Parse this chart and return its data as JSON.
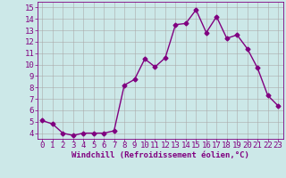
{
  "x": [
    0,
    1,
    2,
    3,
    4,
    5,
    6,
    7,
    8,
    9,
    10,
    11,
    12,
    13,
    14,
    15,
    16,
    17,
    18,
    19,
    20,
    21,
    22,
    23
  ],
  "y": [
    5.1,
    4.8,
    4.0,
    3.8,
    4.0,
    4.0,
    4.0,
    4.2,
    8.2,
    8.7,
    10.5,
    9.8,
    10.6,
    13.5,
    13.6,
    14.8,
    12.8,
    14.2,
    12.3,
    12.6,
    11.4,
    9.7,
    7.3,
    6.4
  ],
  "line_color": "#800080",
  "marker": "D",
  "marker_size": 2.5,
  "bg_color": "#cce8e8",
  "grid_color": "#aaaaaa",
  "xlabel": "Windchill (Refroidissement éolien,°C)",
  "xlabel_color": "#800080",
  "tick_color": "#800080",
  "xlim": [
    -0.5,
    23.5
  ],
  "ylim": [
    3.5,
    15.5
  ],
  "yticks": [
    4,
    5,
    6,
    7,
    8,
    9,
    10,
    11,
    12,
    13,
    14,
    15
  ],
  "xticks": [
    0,
    1,
    2,
    3,
    4,
    5,
    6,
    7,
    8,
    9,
    10,
    11,
    12,
    13,
    14,
    15,
    16,
    17,
    18,
    19,
    20,
    21,
    22,
    23
  ],
  "line_width": 1.0,
  "spine_color": "#800080",
  "axis_bg_color": "#cce8e8",
  "tick_fontsize": 6.5,
  "xlabel_fontsize": 6.5
}
